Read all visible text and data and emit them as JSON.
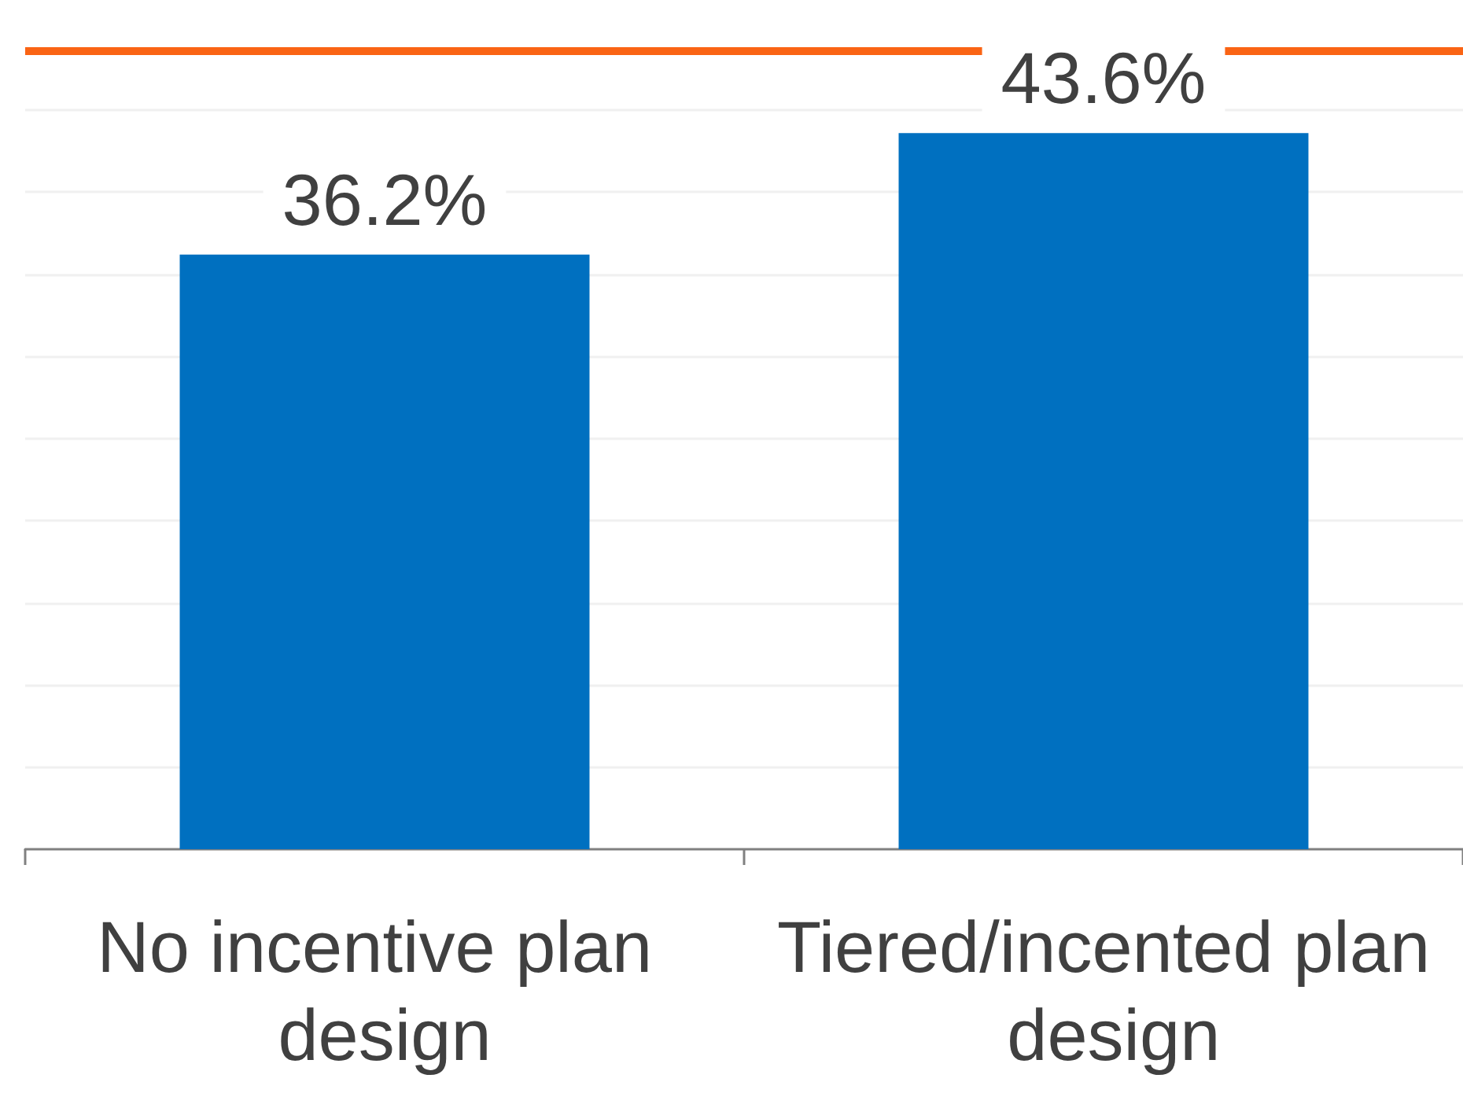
{
  "chart_data": {
    "type": "bar",
    "categories": [
      "No incentive plan design",
      "Tiered/incented plan design"
    ],
    "values": [
      36.2,
      43.6
    ],
    "color": "#0070c0",
    "data_labels": true,
    "value_labels": [
      "36.2%",
      "43.6%"
    ],
    "ylim": [
      0,
      51.7
    ],
    "yticks": [
      {
        "value": 5,
        "label": null
      },
      {
        "value": 10,
        "label": null
      },
      {
        "value": 15,
        "label": null
      },
      {
        "value": 20,
        "label": null
      },
      {
        "value": 25,
        "label": null
      },
      {
        "value": 30,
        "label": null
      },
      {
        "value": 35,
        "label": null
      },
      {
        "value": 40,
        "label": null
      },
      {
        "value": 45,
        "label": null
      }
    ],
    "grid": "y",
    "tick_labels": "x",
    "ref_lines": [
      {
        "axis": "y",
        "value": 48.6,
        "color": "#fa6414"
      }
    ]
  }
}
